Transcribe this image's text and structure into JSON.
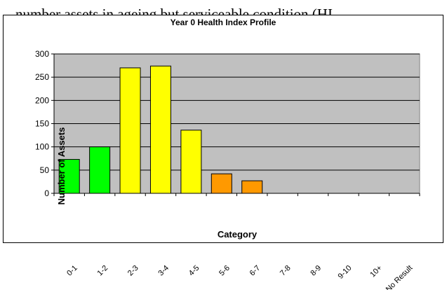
{
  "page": {
    "top_text": "number assets in ageing but serviceable condition (HI"
  },
  "chart_data": {
    "type": "bar",
    "title": "Year 0 Health Index Profile",
    "xlabel": "Category",
    "ylabel": "Number of Assets",
    "categories": [
      "0-1",
      "1-2",
      "2-3",
      "3-4",
      "4-5",
      "5-6",
      "6-7",
      "7-8",
      "8-9",
      "9-10",
      "10+",
      "No Result"
    ],
    "values": [
      73,
      100,
      270,
      274,
      136,
      42,
      27,
      0,
      0,
      0,
      0,
      0
    ],
    "bar_colors": [
      "#00ff00",
      "#00ff00",
      "#ffff00",
      "#ffff00",
      "#ffff00",
      "#ff9900",
      "#ff9900",
      "#ff9900",
      "#ff9900",
      "#ff9900",
      "#ff9900",
      "#ff9900"
    ],
    "ylim": [
      0,
      300
    ],
    "yticks": [
      0,
      50,
      100,
      150,
      200,
      250,
      300
    ],
    "grid": true,
    "plot_background": "#c0c0c0",
    "legend": "none"
  }
}
